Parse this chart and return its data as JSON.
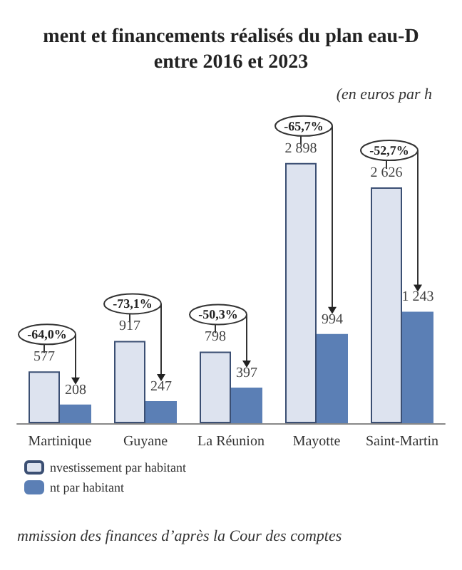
{
  "chart_data": {
    "type": "bar",
    "title": "ment et financements réalisés du plan eau-D\nentre 2016 et 2023",
    "subtitle": "(en euros par h",
    "categories": [
      "Martinique",
      "Guyane",
      "La Réunion",
      "Mayotte",
      "Saint-Martin"
    ],
    "series": [
      {
        "name": "nvestissement par habitant",
        "color": "#dde3ef",
        "values": [
          577,
          917,
          798,
          2898,
          2626
        ]
      },
      {
        "name": "nt par habitant",
        "color": "#5b7fb5",
        "values": [
          208,
          247,
          397,
          994,
          1243
        ]
      }
    ],
    "data_labels": true,
    "legend": "bottom left",
    "annotations": [
      "-64,0%",
      "-73,1%",
      "-50,3%",
      "-65,7%",
      "-52,7%",
      "mmission des finances d’après la Cour des comptes"
    ]
  }
}
